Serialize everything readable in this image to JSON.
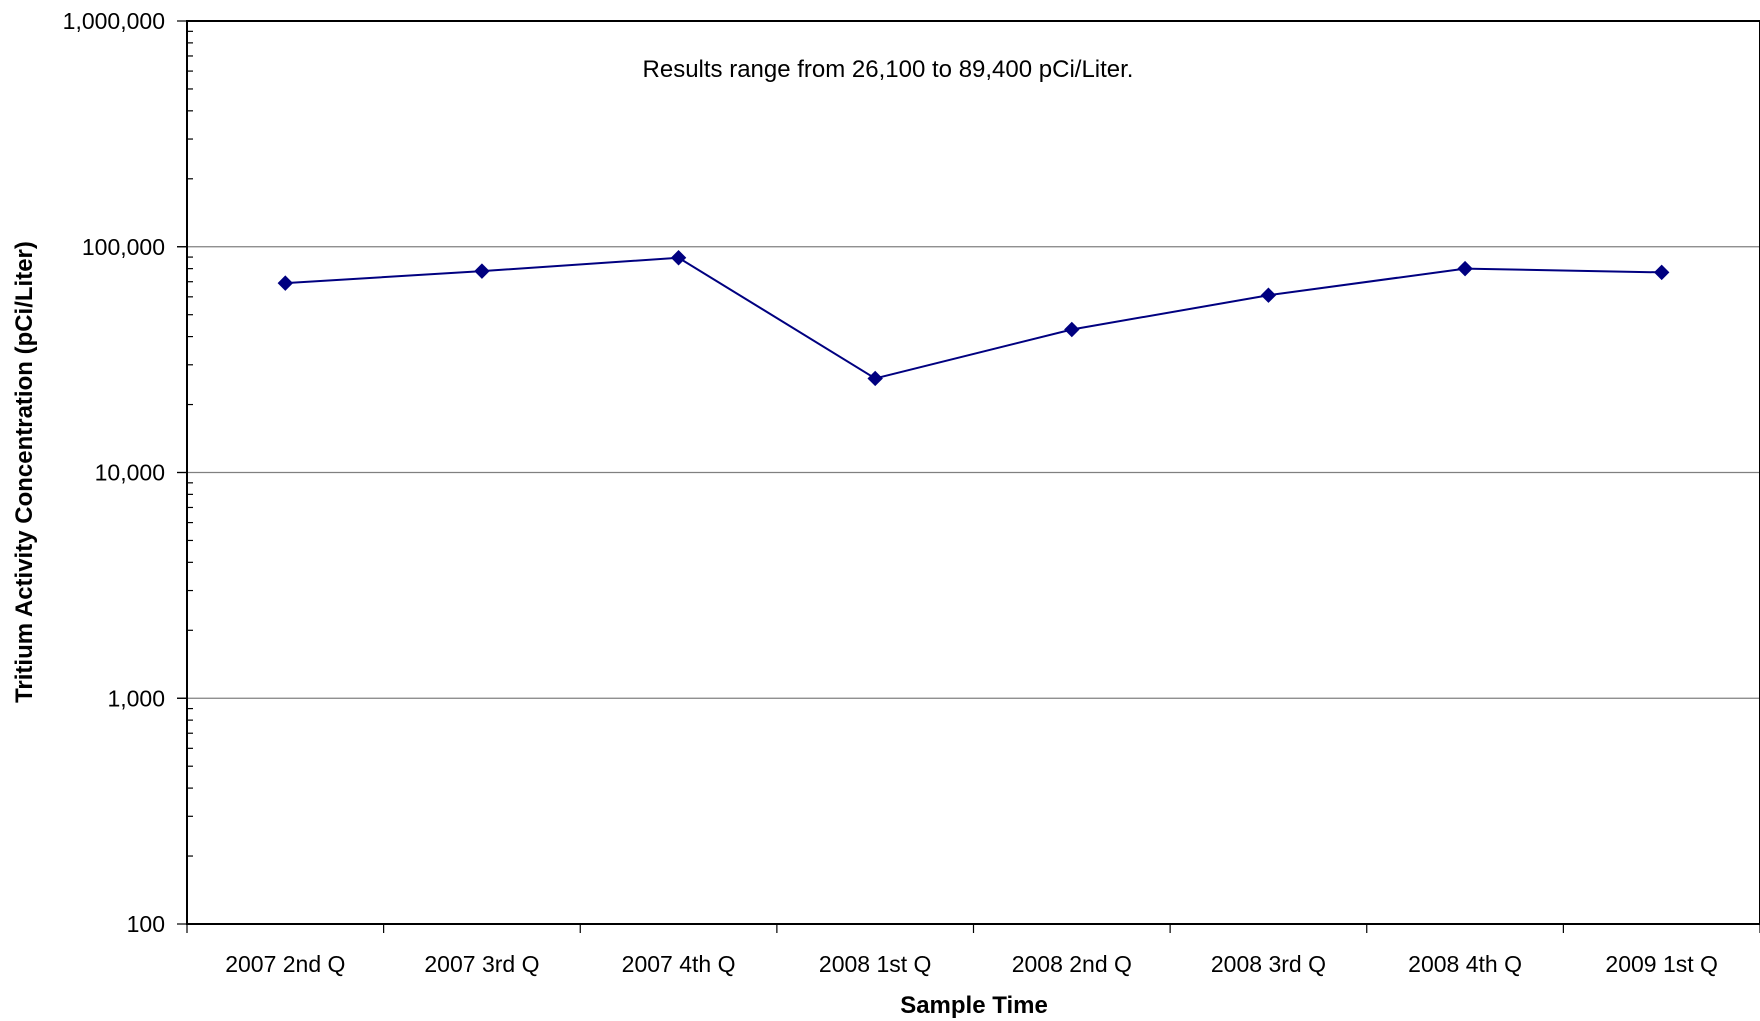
{
  "chart_data": {
    "type": "line",
    "title": "",
    "xlabel": "Sample Time",
    "ylabel": "Tritium Activity Concentration (pCi/Liter)",
    "annotation": "Results range from 26,100  to 89,400 pCi/Liter.",
    "y_scale": "log",
    "ylim": [
      100,
      1000000
    ],
    "y_ticks": [
      100,
      1000,
      10000,
      100000,
      1000000
    ],
    "y_tick_labels": [
      "100",
      "1,000",
      "10,000",
      "100,000",
      "1,000,000"
    ],
    "categories": [
      "2007 2nd Q",
      "2007 3rd Q",
      "2007 4th Q",
      "2008 1st Q",
      "2008 2nd Q",
      "2008 3rd Q",
      "2008 4th Q",
      "2009 1st Q"
    ],
    "series": [
      {
        "values": [
          69000,
          78000,
          89400,
          26100,
          43000,
          61000,
          80000,
          77000
        ],
        "color": "#000080",
        "marker": "diamond"
      }
    ],
    "grid": true,
    "legend": "none"
  }
}
